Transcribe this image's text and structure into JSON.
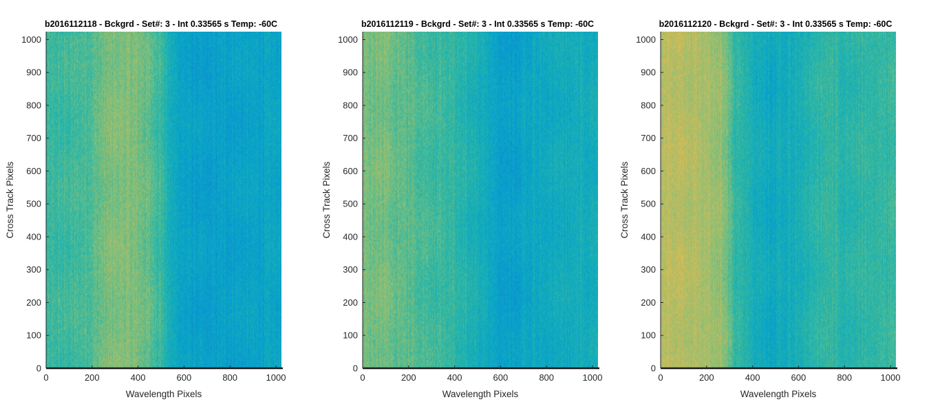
{
  "chart_data": [
    {
      "type": "heatmap",
      "title": "b2016112118 - Bckgrd - Set#: 3 - Int 0.33565 s Temp: -60C",
      "xlabel": "Wavelength Pixels",
      "ylabel": "Cross Track Pixels",
      "xlim": [
        0,
        1024
      ],
      "ylim": [
        0,
        1024
      ],
      "xticks": [
        "0",
        "200",
        "400",
        "600",
        "800",
        "1000"
      ],
      "yticks": [
        "0",
        "100",
        "200",
        "300",
        "400",
        "500",
        "600",
        "700",
        "800",
        "900",
        "1000"
      ],
      "colormap": "parula",
      "column_profile": {
        "x": [
          0,
          60,
          120,
          200,
          260,
          320,
          380,
          440,
          500,
          540,
          600,
          700,
          800,
          900,
          1024
        ],
        "level": [
          0.55,
          0.56,
          0.57,
          0.6,
          0.64,
          0.66,
          0.65,
          0.62,
          0.57,
          0.47,
          0.42,
          0.4,
          0.42,
          0.42,
          0.44
        ]
      }
    },
    {
      "type": "heatmap",
      "title": "b2016112119 - Bckgrd - Set#: 3 - Int 0.33565 s Temp: -60C",
      "xlabel": "Wavelength Pixels",
      "ylabel": "Cross Track Pixels",
      "xlim": [
        0,
        1024
      ],
      "ylim": [
        0,
        1024
      ],
      "xticks": [
        "0",
        "200",
        "400",
        "600",
        "800",
        "1000"
      ],
      "yticks": [
        "0",
        "100",
        "200",
        "300",
        "400",
        "500",
        "600",
        "700",
        "800",
        "900",
        "1000"
      ],
      "colormap": "parula",
      "column_profile": {
        "x": [
          0,
          80,
          160,
          240,
          320,
          400,
          480,
          560,
          620,
          680,
          760,
          840,
          920,
          1024
        ],
        "level": [
          0.63,
          0.64,
          0.62,
          0.59,
          0.57,
          0.55,
          0.5,
          0.44,
          0.41,
          0.42,
          0.45,
          0.46,
          0.47,
          0.48
        ]
      }
    },
    {
      "type": "heatmap",
      "title": "b2016112120 - Bckgrd - Set#: 3 - Int 0.33565 s Temp: -60C",
      "xlabel": "Wavelength Pixels",
      "ylabel": "Cross Track Pixels",
      "xlim": [
        0,
        1024
      ],
      "ylim": [
        0,
        1024
      ],
      "xticks": [
        "0",
        "200",
        "400",
        "600",
        "800",
        "1000"
      ],
      "yticks": [
        "0",
        "100",
        "200",
        "300",
        "400",
        "500",
        "600",
        "700",
        "800",
        "900",
        "1000"
      ],
      "colormap": "parula",
      "column_profile": {
        "x": [
          0,
          60,
          140,
          220,
          280,
          320,
          400,
          480,
          560,
          640,
          720,
          800,
          900,
          1024
        ],
        "level": [
          0.74,
          0.75,
          0.73,
          0.71,
          0.67,
          0.55,
          0.49,
          0.45,
          0.47,
          0.51,
          0.55,
          0.53,
          0.54,
          0.56
        ]
      }
    }
  ],
  "colors": {
    "axis": "#262626",
    "baseline": "#1a1a1a"
  }
}
